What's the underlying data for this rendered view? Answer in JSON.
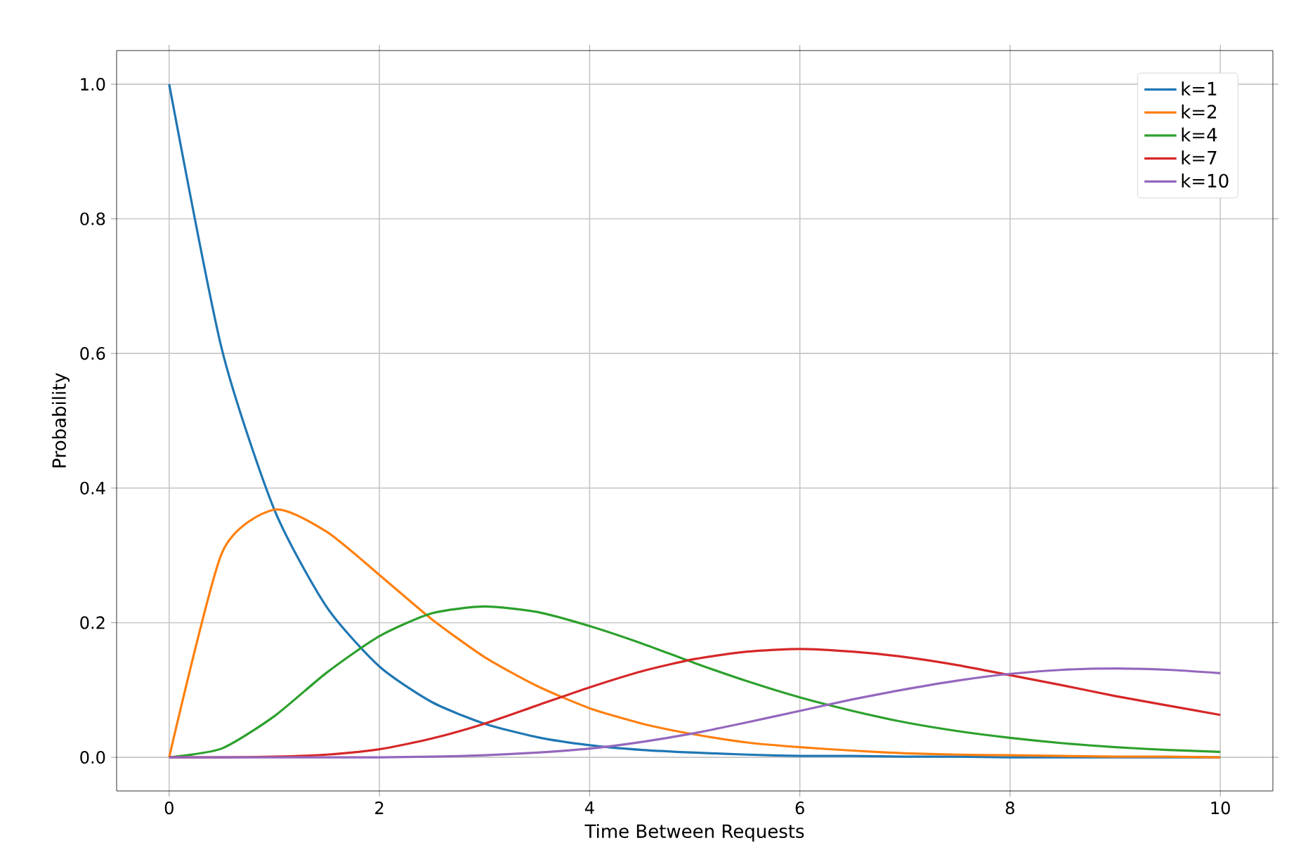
{
  "chart_data": {
    "type": "line",
    "xlabel": "Time Between Requests",
    "ylabel": "Probability",
    "x": [
      0,
      0.5,
      1,
      1.5,
      2,
      2.5,
      3,
      3.5,
      4,
      4.5,
      5,
      5.5,
      6,
      6.5,
      7,
      7.5,
      8,
      8.5,
      9,
      9.5,
      10
    ],
    "series": [
      {
        "name": "k=1",
        "color": "#1f77b4",
        "values": [
          1,
          0.607,
          0.368,
          0.223,
          0.135,
          0.082,
          0.05,
          0.03,
          0.018,
          0.011,
          0.007,
          0.004,
          0.002,
          0.002,
          0.001,
          0.001,
          0,
          0,
          0,
          0,
          0
        ]
      },
      {
        "name": "k=2",
        "color": "#ff7f0e",
        "values": [
          0,
          0.303,
          0.368,
          0.335,
          0.271,
          0.205,
          0.149,
          0.106,
          0.073,
          0.05,
          0.034,
          0.022,
          0.015,
          0.01,
          0.006,
          0.004,
          0.003,
          0.002,
          0.001,
          0.001,
          0
        ]
      },
      {
        "name": "k=4",
        "color": "#2ca02c",
        "values": [
          0,
          0.013,
          0.061,
          0.126,
          0.18,
          0.214,
          0.224,
          0.216,
          0.195,
          0.169,
          0.14,
          0.113,
          0.089,
          0.069,
          0.052,
          0.039,
          0.029,
          0.021,
          0.015,
          0.011,
          0.008
        ]
      },
      {
        "name": "k=7",
        "color": "#d62728",
        "values": [
          0,
          0,
          0.001,
          0.004,
          0.012,
          0.028,
          0.05,
          0.077,
          0.104,
          0.128,
          0.146,
          0.157,
          0.161,
          0.157,
          0.149,
          0.137,
          0.122,
          0.107,
          0.091,
          0.077,
          0.063
        ]
      },
      {
        "name": "k=10",
        "color": "#9467bd",
        "values": [
          0,
          0,
          0,
          0,
          0,
          0.001,
          0.003,
          0.007,
          0.013,
          0.023,
          0.036,
          0.052,
          0.069,
          0.086,
          0.101,
          0.114,
          0.124,
          0.13,
          0.132,
          0.13,
          0.125
        ]
      }
    ],
    "xlim": [
      -0.5,
      10.5
    ],
    "ylim": [
      -0.05,
      1.05
    ],
    "xticks": [
      0,
      2,
      4,
      6,
      8,
      10
    ],
    "yticks": [
      {
        "value": 0,
        "label": "0.0"
      },
      {
        "value": 0.2,
        "label": "0.2"
      },
      {
        "value": 0.4,
        "label": "0.4"
      },
      {
        "value": 0.6,
        "label": "0.6"
      },
      {
        "value": 0.8,
        "label": "0.8"
      },
      {
        "value": 1,
        "label": "1.0"
      }
    ],
    "grid": true,
    "legend": "top right"
  }
}
